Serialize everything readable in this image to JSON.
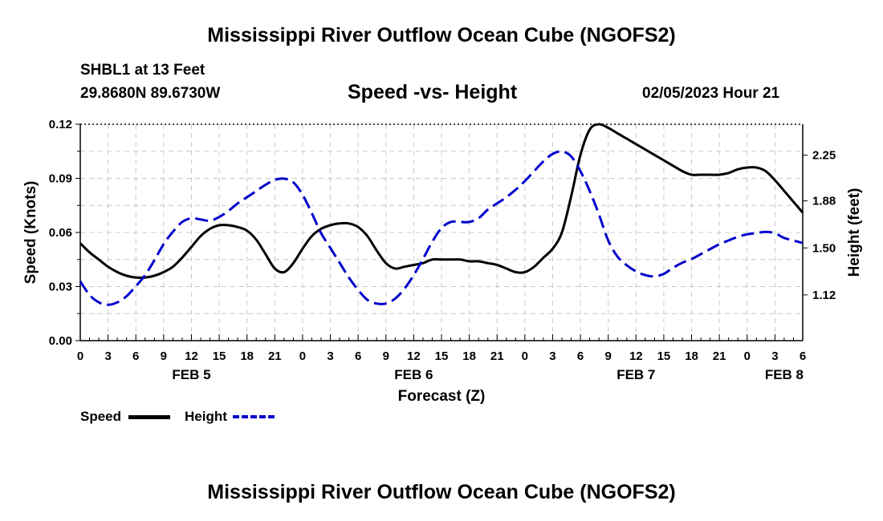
{
  "header": {
    "title": "Mississippi River Outflow Ocean Cube (NGOFS2)",
    "station": "SHBL1 at 13 Feet",
    "coords": "29.8680N  89.6730W",
    "subtitle": "Speed -vs- Height",
    "datetime": "02/05/2023 Hour 21"
  },
  "footer": {
    "title": "Mississippi River Outflow Ocean Cube (NGOFS2)"
  },
  "legend": {
    "speed_label": "Speed",
    "height_label": "Height",
    "speed_color": "#000000",
    "height_color": "#0000cc"
  },
  "chart_data": {
    "type": "line",
    "title": "Speed -vs- Height",
    "xlabel": "Forecast (Z)",
    "ylabel": "Speed (Knots)",
    "y2label": "Height (feet)",
    "x_range": [
      0,
      78
    ],
    "ylim": [
      0,
      0.12
    ],
    "y2lim": [
      0.75,
      2.5
    ],
    "grid": true,
    "x_ticks": [
      0,
      3,
      6,
      9,
      12,
      15,
      18,
      21,
      24,
      27,
      30,
      33,
      36,
      39,
      42,
      45,
      48,
      51,
      54,
      57,
      60,
      63,
      66,
      69,
      72,
      75,
      78
    ],
    "x_tick_labels": [
      "0",
      "3",
      "6",
      "9",
      "12",
      "15",
      "18",
      "21",
      "0",
      "3",
      "6",
      "9",
      "12",
      "15",
      "18",
      "21",
      "0",
      "3",
      "6",
      "9",
      "12",
      "15",
      "18",
      "21",
      "0",
      "3",
      "6"
    ],
    "day_labels": [
      {
        "x": 12,
        "label": "FEB 5"
      },
      {
        "x": 36,
        "label": "FEB 6"
      },
      {
        "x": 60,
        "label": "FEB 7"
      },
      {
        "x": 76,
        "label": "FEB 8"
      }
    ],
    "y_ticks": [
      0,
      0.03,
      0.06,
      0.09,
      0.12
    ],
    "y_tick_labels": [
      "0.00",
      "0.03",
      "0.06",
      "0.09",
      "0.12"
    ],
    "y2_ticks": [
      1.12,
      1.5,
      1.88,
      2.25
    ],
    "y2_tick_labels": [
      "1.12",
      "1.50",
      "1.88",
      "2.25"
    ],
    "series": [
      {
        "name": "Speed",
        "axis": "left",
        "style": "solid",
        "color": "#000000",
        "x": [
          0,
          1,
          2,
          3,
          4,
          5,
          6,
          7,
          8,
          9,
          10,
          11,
          12,
          13,
          14,
          15,
          16,
          17,
          18,
          19,
          20,
          21,
          22,
          23,
          24,
          25,
          26,
          27,
          28,
          29,
          30,
          31,
          32,
          33,
          34,
          35,
          36,
          37,
          38,
          39,
          40,
          41,
          42,
          43,
          44,
          45,
          46,
          47,
          48,
          49,
          50,
          51,
          52,
          53,
          54,
          55,
          56,
          57,
          58,
          59,
          60,
          61,
          62,
          63,
          64,
          65,
          66,
          67,
          68,
          69,
          70,
          71,
          72,
          73,
          74,
          75,
          76,
          77,
          78
        ],
        "values": [
          0.054,
          0.049,
          0.045,
          0.041,
          0.038,
          0.036,
          0.035,
          0.035,
          0.036,
          0.038,
          0.041,
          0.046,
          0.052,
          0.058,
          0.062,
          0.064,
          0.064,
          0.063,
          0.061,
          0.056,
          0.048,
          0.04,
          0.038,
          0.043,
          0.051,
          0.058,
          0.062,
          0.064,
          0.065,
          0.065,
          0.063,
          0.058,
          0.05,
          0.043,
          0.04,
          0.041,
          0.042,
          0.043,
          0.045,
          0.045,
          0.045,
          0.045,
          0.044,
          0.044,
          0.043,
          0.042,
          0.04,
          0.038,
          0.038,
          0.041,
          0.046,
          0.051,
          0.06,
          0.08,
          0.103,
          0.117,
          0.12,
          0.118,
          0.115,
          0.112,
          0.109,
          0.106,
          0.103,
          0.1,
          0.097,
          0.094,
          0.092,
          0.092,
          0.092,
          0.092,
          0.093,
          0.095,
          0.096,
          0.096,
          0.094,
          0.089,
          0.083,
          0.077,
          0.071
        ]
      },
      {
        "name": "Height",
        "axis": "right",
        "style": "dashed",
        "color": "#0000cc",
        "x": [
          0,
          1,
          2,
          3,
          4,
          5,
          6,
          7,
          8,
          9,
          10,
          11,
          12,
          13,
          14,
          15,
          16,
          17,
          18,
          19,
          20,
          21,
          22,
          23,
          24,
          25,
          26,
          27,
          28,
          29,
          30,
          31,
          32,
          33,
          34,
          35,
          36,
          37,
          38,
          39,
          40,
          41,
          42,
          43,
          44,
          45,
          46,
          47,
          48,
          49,
          50,
          51,
          52,
          53,
          54,
          55,
          56,
          57,
          58,
          59,
          60,
          61,
          62,
          63,
          64,
          65,
          66,
          67,
          68,
          69,
          70,
          71,
          72,
          73,
          74,
          75,
          75.5,
          76,
          77,
          78
        ],
        "values": [
          1.23,
          1.12,
          1.06,
          1.04,
          1.06,
          1.11,
          1.19,
          1.28,
          1.4,
          1.53,
          1.63,
          1.71,
          1.74,
          1.73,
          1.72,
          1.75,
          1.8,
          1.86,
          1.91,
          1.96,
          2.01,
          2.05,
          2.06,
          2.03,
          1.93,
          1.78,
          1.62,
          1.5,
          1.38,
          1.26,
          1.16,
          1.08,
          1.05,
          1.05,
          1.09,
          1.17,
          1.28,
          1.41,
          1.55,
          1.66,
          1.71,
          1.71,
          1.71,
          1.74,
          1.81,
          1.86,
          1.91,
          1.97,
          2.04,
          2.12,
          2.2,
          2.26,
          2.28,
          2.24,
          2.12,
          1.96,
          1.77,
          1.56,
          1.43,
          1.36,
          1.31,
          1.28,
          1.27,
          1.29,
          1.34,
          1.38,
          1.41,
          1.45,
          1.49,
          1.53,
          1.56,
          1.59,
          1.61,
          1.62,
          1.63,
          1.62,
          1.6,
          1.58,
          1.56,
          1.54
        ]
      }
    ]
  }
}
